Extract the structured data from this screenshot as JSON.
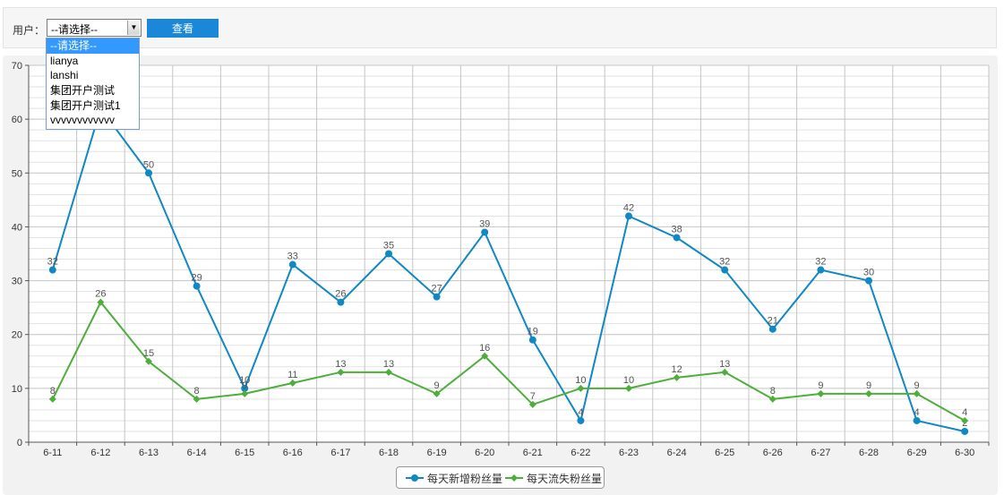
{
  "filter": {
    "user_label": "用户：",
    "selected_value": "--请选择--",
    "view_button": "查看",
    "options": [
      "--请选择--",
      "lianya",
      "lanshi",
      "集团开户测试",
      "集团开户测试1",
      "vvvvvvvvvvvv"
    ]
  },
  "chart_data": {
    "type": "line",
    "categories": [
      "6-11",
      "6-12",
      "6-13",
      "6-14",
      "6-15",
      "6-16",
      "6-17",
      "6-18",
      "6-19",
      "6-20",
      "6-21",
      "6-22",
      "6-23",
      "6-24",
      "6-25",
      "6-26",
      "6-27",
      "6-28",
      "6-29",
      "6-30"
    ],
    "ylim": [
      0,
      70
    ],
    "yticks": [
      0,
      10,
      20,
      30,
      40,
      50,
      60,
      70
    ],
    "grid": true,
    "legend_position": "bottom-center",
    "series": [
      {
        "name": "每天新增粉丝量",
        "color": "#1088c4",
        "values": [
          32,
          62,
          50,
          29,
          10,
          33,
          26,
          35,
          27,
          39,
          19,
          4,
          42,
          38,
          32,
          21,
          32,
          30,
          4,
          2
        ]
      },
      {
        "name": "每天流失粉丝量",
        "color": "#4daf3a",
        "values": [
          8,
          26,
          15,
          8,
          9,
          11,
          13,
          13,
          9,
          16,
          7,
          10,
          10,
          12,
          13,
          8,
          9,
          9,
          9,
          4
        ]
      }
    ]
  }
}
